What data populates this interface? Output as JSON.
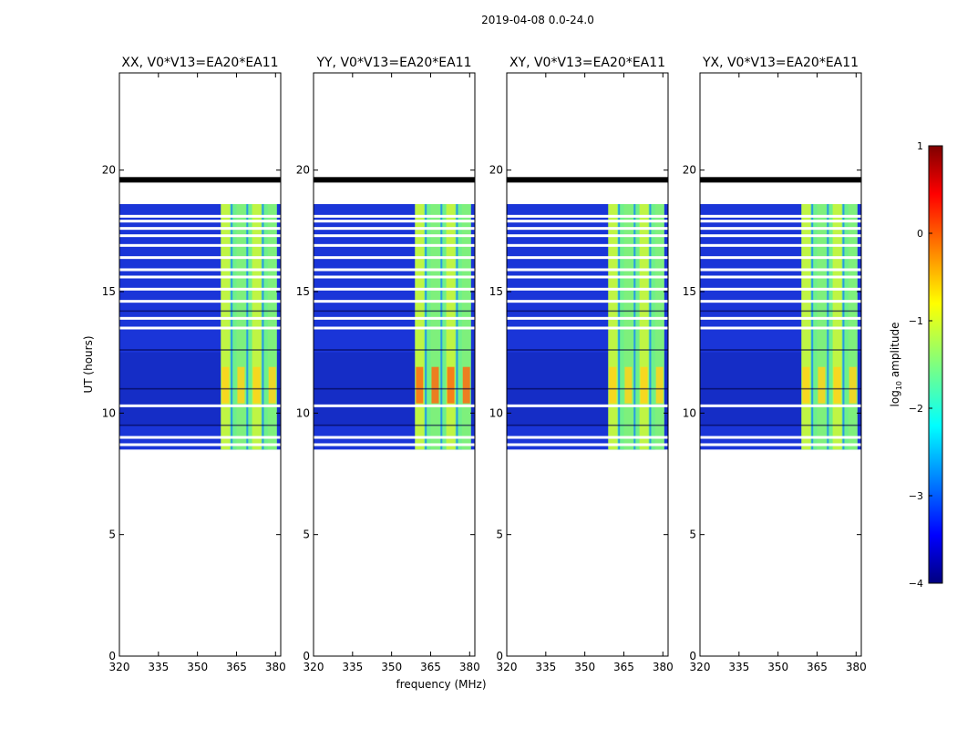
{
  "suptitle": "2019-04-08 0.0-24.0",
  "chart_data": {
    "type": "heatmap",
    "xlabel": "frequency (MHz)",
    "ylabel": "UT (hours)",
    "xlim": [
      320,
      382
    ],
    "ylim": [
      0,
      24
    ],
    "xticks": [
      "320",
      "335",
      "350",
      "365",
      "380"
    ],
    "yticks": [
      "0",
      "5",
      "10",
      "15",
      "20"
    ],
    "panels": [
      {
        "title": "XX, V0*V13=EA20*EA11",
        "band_start_mhz": 359,
        "peak_log10": -0.8
      },
      {
        "title": "YY, V0*V13=EA20*EA11",
        "band_start_mhz": 359,
        "peak_log10": 0.0
      },
      {
        "title": "XY, V0*V13=EA20*EA11",
        "band_start_mhz": 359,
        "peak_log10": -0.6
      },
      {
        "title": "YX, V0*V13=EA20*EA11",
        "band_start_mhz": 359,
        "peak_log10": -0.6
      }
    ],
    "data_time_range_hours": [
      8.5,
      18.6
    ],
    "flagged_row_hours": [
      19.6
    ],
    "colorbar": {
      "label": "log10 amplitude",
      "min": -4,
      "max": 1,
      "ticks": [
        "1",
        "0",
        "−1",
        "−2",
        "−3",
        "−4"
      ],
      "colormap": "jet"
    }
  }
}
